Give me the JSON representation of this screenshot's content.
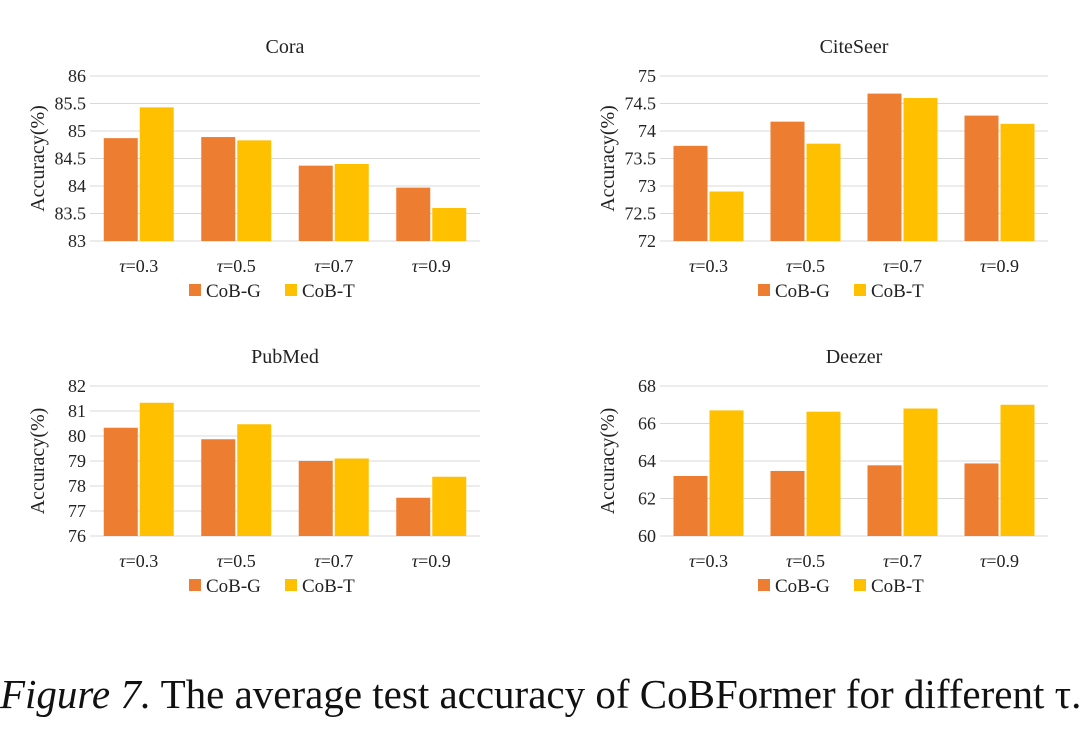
{
  "chart_data": [
    {
      "type": "bar",
      "title": "Cora",
      "categories": [
        "τ=0.3",
        "τ=0.5",
        "τ=0.7",
        "τ=0.9"
      ],
      "series": [
        {
          "name": "CoB-G",
          "values": [
            84.87,
            84.89,
            84.37,
            83.97
          ]
        },
        {
          "name": "CoB-T",
          "values": [
            85.43,
            84.83,
            84.4,
            83.6
          ]
        }
      ],
      "ylabel": "Accuracy(%)",
      "ylim": [
        83,
        86
      ],
      "yticks": [
        83,
        83.5,
        84,
        84.5,
        85,
        85.5,
        86
      ],
      "ytick_labels": [
        "83",
        "83.5",
        "84",
        "84.5",
        "85",
        "85.5",
        "86"
      ],
      "grid": true,
      "legend": "bottom"
    },
    {
      "type": "bar",
      "title": "CiteSeer",
      "categories": [
        "τ=0.3",
        "τ=0.5",
        "τ=0.7",
        "τ=0.9"
      ],
      "series": [
        {
          "name": "CoB-G",
          "values": [
            73.73,
            74.17,
            74.68,
            74.28
          ]
        },
        {
          "name": "CoB-T",
          "values": [
            72.9,
            73.77,
            74.6,
            74.13
          ]
        }
      ],
      "ylabel": "Accuracy(%)",
      "ylim": [
        72,
        75
      ],
      "yticks": [
        72,
        72.5,
        73,
        73.5,
        74,
        74.5,
        75
      ],
      "ytick_labels": [
        "72",
        "72.5",
        "73",
        "73.5",
        "74",
        "74.5",
        "75"
      ],
      "grid": true,
      "legend": "bottom"
    },
    {
      "type": "bar",
      "title": "PubMed",
      "categories": [
        "τ=0.3",
        "τ=0.5",
        "τ=0.7",
        "τ=0.9"
      ],
      "series": [
        {
          "name": "CoB-G",
          "values": [
            80.33,
            79.87,
            79.0,
            77.53
          ]
        },
        {
          "name": "CoB-T",
          "values": [
            81.33,
            80.47,
            79.1,
            78.37
          ]
        }
      ],
      "ylabel": "Accuracy(%)",
      "ylim": [
        76,
        82
      ],
      "yticks": [
        76,
        77,
        78,
        79,
        80,
        81,
        82
      ],
      "ytick_labels": [
        "76",
        "77",
        "78",
        "79",
        "80",
        "81",
        "82"
      ],
      "grid": true,
      "legend": "bottom"
    },
    {
      "type": "bar",
      "title": "Deezer",
      "categories": [
        "τ=0.3",
        "τ=0.5",
        "τ=0.7",
        "τ=0.9"
      ],
      "series": [
        {
          "name": "CoB-G",
          "values": [
            63.2,
            63.47,
            63.77,
            63.87
          ]
        },
        {
          "name": "CoB-T",
          "values": [
            66.7,
            66.63,
            66.8,
            67.0
          ]
        }
      ],
      "ylabel": "Accuracy(%)",
      "ylim": [
        60,
        68
      ],
      "yticks": [
        60,
        62,
        64,
        66,
        68
      ],
      "ytick_labels": [
        "60",
        "62",
        "64",
        "66",
        "68"
      ],
      "grid": true,
      "legend": "bottom"
    }
  ],
  "colors": {
    "CoB-G": "#ED7D31",
    "CoB-T": "#FFC000",
    "grid": "#D9D9D9"
  },
  "caption": {
    "label": "Figure 7.",
    "text": "The average test accuracy of CoBFormer for different τ."
  }
}
